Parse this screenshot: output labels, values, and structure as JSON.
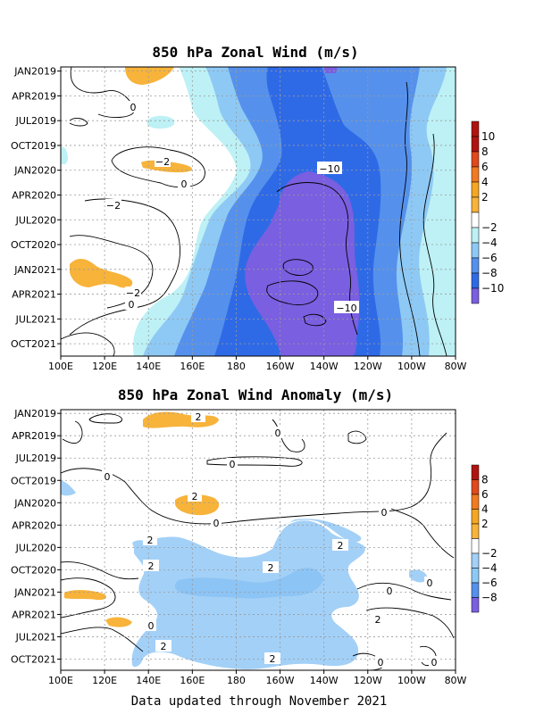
{
  "colors": {
    "pos2_4": "#f7b33a",
    "pos4_6": "#f5a623",
    "pos6_8": "#f07a22",
    "pos8_10": "#e04a1c",
    "pos10": "#b01410",
    "neg2_4": "#bdf1f5",
    "neg4_6": "#8ec9f5",
    "neg6_8": "#5591ec",
    "neg8_10": "#2f6ae6",
    "neg10": "#7a5fe0",
    "white": "#ffffff"
  },
  "footer": "Data updated through November 2021",
  "chart_data": [
    {
      "type": "heatmap",
      "title": "850 hPa Zonal Wind (m/s)",
      "x_ticks": [
        "100E",
        "120E",
        "140E",
        "160E",
        "180",
        "160W",
        "140W",
        "120W",
        "100W",
        "80W"
      ],
      "y_ticks": [
        "JAN2019",
        "APR2019",
        "JUL2019",
        "OCT2019",
        "JAN2020",
        "APR2020",
        "JUL2020",
        "OCT2020",
        "JAN2021",
        "APR2021",
        "JUL2021",
        "OCT2021"
      ],
      "x_range": [
        "100E",
        "80W"
      ],
      "y_range": [
        "JAN2019",
        "NOV2021"
      ],
      "colorbar_labels": [
        "10",
        "8",
        "6",
        "4",
        "2",
        "−2",
        "−4",
        "−6",
        "−8",
        "−10"
      ],
      "contour_labels": [
        "0",
        "−2",
        "0",
        "−2",
        "−10",
        "−2",
        "0",
        "−10"
      ],
      "grid": true
    },
    {
      "type": "heatmap",
      "title": "850 hPa Zonal Wind Anomaly (m/s)",
      "x_ticks": [
        "100E",
        "120E",
        "140E",
        "160E",
        "180",
        "160W",
        "140W",
        "120W",
        "100W",
        "80W"
      ],
      "y_ticks": [
        "JAN2019",
        "APR2019",
        "JUL2019",
        "OCT2019",
        "JAN2020",
        "APR2020",
        "JUL2020",
        "OCT2020",
        "JAN2021",
        "APR2021",
        "JUL2021",
        "OCT2021"
      ],
      "x_range": [
        "100E",
        "80W"
      ],
      "y_range": [
        "JAN2019",
        "NOV2021"
      ],
      "colorbar_labels": [
        "8",
        "6",
        "4",
        "2",
        "−2",
        "−4",
        "−6",
        "−8"
      ],
      "contour_labels": [
        "2",
        "0",
        "0",
        "0",
        "2",
        "0",
        "0",
        "2",
        "2",
        "2",
        "2",
        "2",
        "0",
        "0",
        "2",
        "0",
        "2",
        "2",
        "0",
        "0"
      ],
      "grid": true
    }
  ]
}
